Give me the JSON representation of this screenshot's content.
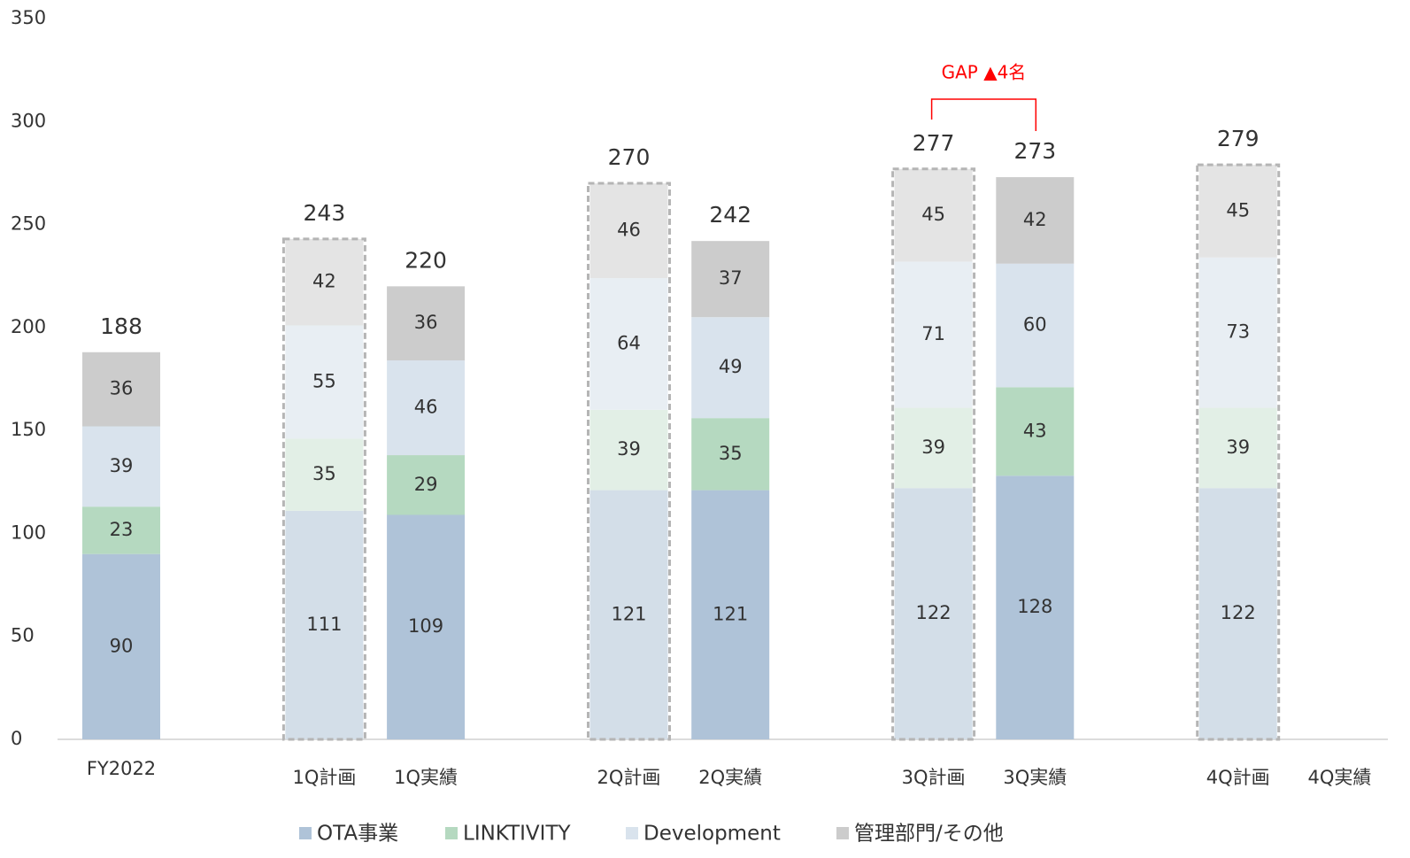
{
  "chart_data": {
    "type": "stacked_bar",
    "categories": [
      "FY2022",
      null,
      "1Q計画",
      "1Q実績",
      null,
      "2Q計画",
      "2Q実績",
      null,
      "3Q計画",
      "3Q実績",
      null,
      "4Q計画",
      "4Q実績"
    ],
    "series": [
      {
        "name": "OTA事業",
        "color": "#afc3d8",
        "plan_color": "#d3dee8",
        "values": [
          90,
          null,
          111,
          109,
          null,
          121,
          121,
          null,
          122,
          128,
          null,
          122,
          null
        ]
      },
      {
        "name": "LINKTIVITY",
        "color": "#b5d9c0",
        "plan_color": "#e2efe6",
        "values": [
          23,
          null,
          35,
          29,
          null,
          39,
          35,
          null,
          39,
          43,
          null,
          39,
          null
        ]
      },
      {
        "name": "Development",
        "color": "#d9e3ed",
        "plan_color": "#e8eef3",
        "values": [
          39,
          null,
          55,
          46,
          null,
          64,
          49,
          null,
          71,
          60,
          null,
          73,
          null
        ]
      },
      {
        "name": "管理部門/その他",
        "color": "#cccccc",
        "plan_color": "#e4e4e4",
        "values": [
          36,
          null,
          42,
          36,
          null,
          46,
          37,
          null,
          45,
          42,
          null,
          45,
          null
        ]
      }
    ],
    "totals": [
      188,
      null,
      243,
      220,
      null,
      270,
      242,
      null,
      277,
      273,
      null,
      279,
      null
    ],
    "plan": [
      false,
      false,
      true,
      false,
      false,
      true,
      false,
      false,
      true,
      false,
      false,
      true,
      false
    ],
    "ylim": [
      0,
      350
    ],
    "yticks": [
      0,
      50,
      100,
      150,
      200,
      250,
      300,
      350
    ],
    "grid": false,
    "legend": "bottom",
    "annotation": {
      "text": "GAP ▲4名",
      "color": "#ff0000",
      "from": 8,
      "to": 9
    }
  }
}
